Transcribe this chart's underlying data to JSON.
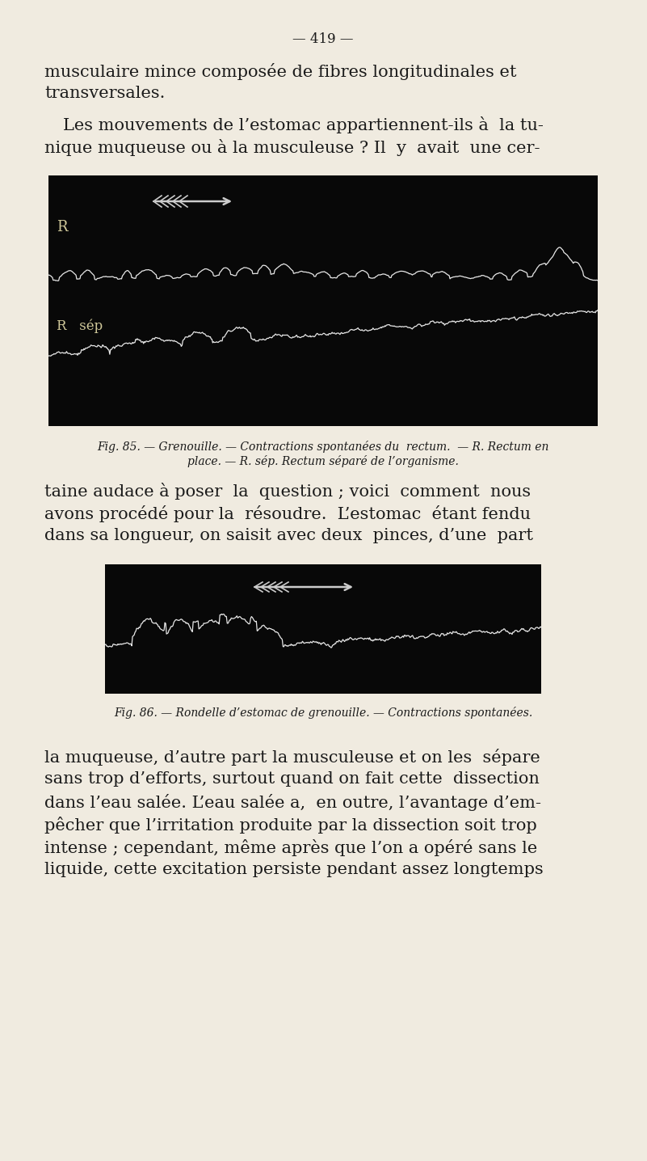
{
  "bg_color": "#f0ebe0",
  "text_color": "#1a1a1a",
  "page_number": "— 419 —",
  "para1_line1": "musculaire mince composée de fibres longitudinales et",
  "para1_line2": "transversales.",
  "para2_line1": "Les mouvements de l’estomac appartiennent-ils à  la tu-",
  "para2_line2": "nique muqueuse ou à la musculeuse ? Il  y  avait  une cer-",
  "fig1_caption_line1": "Fig. 85. — Grenouille. — Contractions spontanées du  rectum.  — R. Rectum en",
  "fig1_caption_line2": "place. — R. sép. Rectum séparé de l’organisme.",
  "para3_line1": "taine audace à poser  la  question ; voici  comment  nous",
  "para3_line2": "avons procédé pour la  résoudre.  L’estomac  étant fendu",
  "para3_line3": "dans sa longueur, on saisit avec deux  pinces, d’une  part",
  "fig2_caption": "Fig. 86. — Rondelle d’estomac de grenouille. — Contractions spontanées.",
  "para4_line1": "la muqueuse, d’autre part la musculeuse et on les  sépare",
  "para4_line2": "sans trop d’efforts, surtout quand on fait cette  dissection",
  "para4_line3": "dans l’eau salée. L’eau salée a,  en outre, l’avantage d’em-",
  "para4_line4": "pêcher que l’irritation produite par la dissection soit trop",
  "para4_line5": "intense ; cependant, même après que l’on a opéré sans le",
  "para4_line6": "liquide, cette excitation persiste pendant assez longtemps"
}
